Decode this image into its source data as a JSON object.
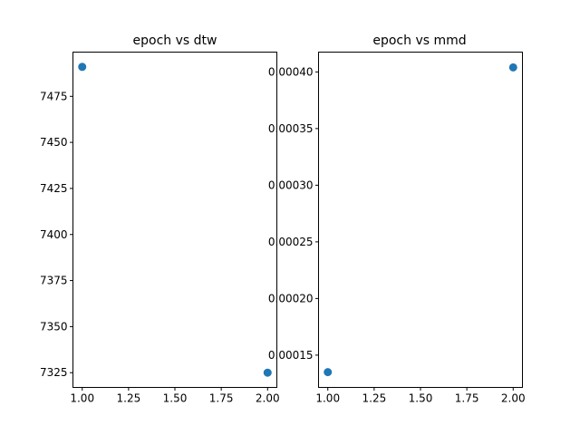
{
  "chart_data": [
    {
      "type": "scatter",
      "title": "epoch vs dtw",
      "xlabel": "",
      "ylabel": "",
      "x": [
        1.0,
        2.0
      ],
      "y": [
        7491,
        7325
      ],
      "xlim": [
        0.95,
        2.05
      ],
      "ylim": [
        7317,
        7499
      ],
      "xticks": [
        1.0,
        1.25,
        1.5,
        1.75,
        2.0
      ],
      "xtick_labels": [
        "1.00",
        "1.25",
        "1.50",
        "1.75",
        "2.00"
      ],
      "yticks": [
        7325,
        7350,
        7375,
        7400,
        7425,
        7450,
        7475
      ],
      "ytick_labels": [
        "7325",
        "7350",
        "7375",
        "7400",
        "7425",
        "7450",
        "7475"
      ],
      "grid": false,
      "color": "#1f77b4"
    },
    {
      "type": "scatter",
      "title": "epoch vs mmd",
      "xlabel": "",
      "ylabel": "",
      "x": [
        1.0,
        2.0
      ],
      "y": [
        0.000135,
        0.000404
      ],
      "xlim": [
        0.95,
        2.05
      ],
      "ylim": [
        0.0001215,
        0.0004175
      ],
      "xticks": [
        1.0,
        1.25,
        1.5,
        1.75,
        2.0
      ],
      "xtick_labels": [
        "1.00",
        "1.25",
        "1.50",
        "1.75",
        "2.00"
      ],
      "yticks": [
        0.00015,
        0.0002,
        0.00025,
        0.0003,
        0.00035,
        0.0004
      ],
      "ytick_labels": [
        "0.00015",
        "0.00020",
        "0.00025",
        "0.00030",
        "0.00035",
        "0.00040"
      ],
      "grid": false,
      "color": "#1f77b4"
    }
  ]
}
